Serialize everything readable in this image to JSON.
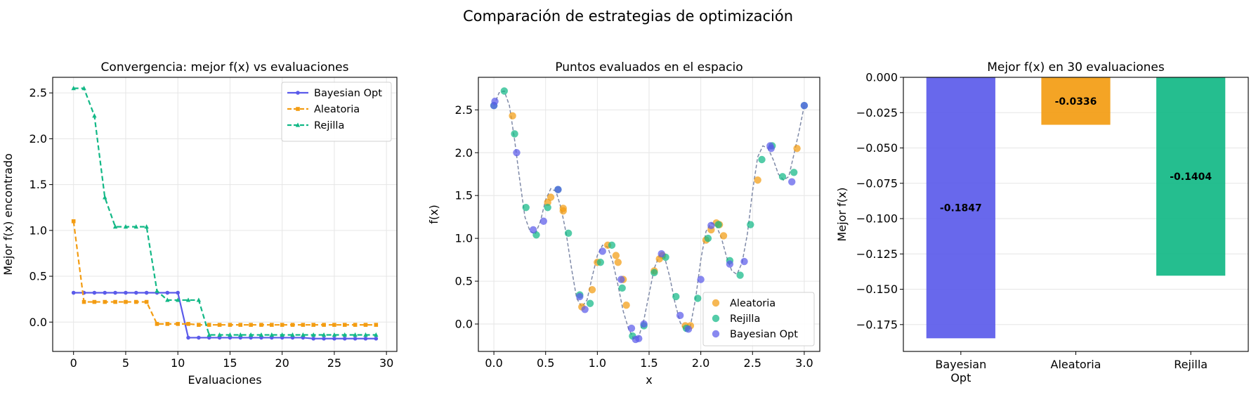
{
  "figure": {
    "suptitle": "Comparación de estrategias de optimización"
  },
  "colors": {
    "bayesian": "#5b5bea",
    "aleatoria": "#f39c12",
    "rejilla": "#12b886",
    "truth": "#7f8aa8",
    "grid": "#e6e6e6"
  },
  "chart_data": [
    {
      "type": "line",
      "title": "Convergencia: mejor f(x) vs evaluaciones",
      "xlabel": "Evaluaciones",
      "ylabel": "Mejor f(x) encontrado",
      "xlim": [
        -2,
        31
      ],
      "ylim": [
        -0.32,
        2.67
      ],
      "xticks": [
        0,
        5,
        10,
        15,
        20,
        25,
        30
      ],
      "xtick_labels": [
        "0",
        "5",
        "10",
        "15",
        "20",
        "25",
        "30"
      ],
      "yticks": [
        0.0,
        0.5,
        1.0,
        1.5,
        2.0,
        2.5
      ],
      "ytick_labels": [
        "0.0",
        "0.5",
        "1.0",
        "1.5",
        "2.0",
        "2.5"
      ],
      "grid": true,
      "legend": "top-right",
      "x": [
        0,
        1,
        2,
        3,
        4,
        5,
        6,
        7,
        8,
        9,
        10,
        11,
        12,
        13,
        14,
        15,
        16,
        17,
        18,
        19,
        20,
        21,
        22,
        23,
        24,
        25,
        26,
        27,
        28,
        29
      ],
      "series": [
        {
          "name": "Bayesian Opt",
          "color": "#5b5bea",
          "marker": "circle",
          "dash": "solid",
          "values": [
            0.32,
            0.32,
            0.32,
            0.32,
            0.32,
            0.32,
            0.32,
            0.32,
            0.32,
            0.32,
            0.32,
            -0.17,
            -0.17,
            -0.17,
            -0.17,
            -0.17,
            -0.17,
            -0.17,
            -0.17,
            -0.17,
            -0.17,
            -0.17,
            -0.17,
            -0.18,
            -0.18,
            -0.18,
            -0.18,
            -0.18,
            -0.18,
            -0.18
          ]
        },
        {
          "name": "Aleatoria",
          "color": "#f39c12",
          "marker": "square",
          "dash": "dashed",
          "values": [
            1.1,
            0.22,
            0.22,
            0.22,
            0.22,
            0.22,
            0.22,
            0.22,
            -0.02,
            -0.02,
            -0.02,
            -0.02,
            -0.03,
            -0.03,
            -0.03,
            -0.03,
            -0.03,
            -0.03,
            -0.03,
            -0.03,
            -0.03,
            -0.03,
            -0.03,
            -0.03,
            -0.03,
            -0.03,
            -0.03,
            -0.03,
            -0.03,
            -0.03
          ]
        },
        {
          "name": "Rejilla",
          "color": "#12b886",
          "marker": "triangle",
          "dash": "dashed",
          "values": [
            2.55,
            2.55,
            2.25,
            1.36,
            1.04,
            1.04,
            1.04,
            1.04,
            0.34,
            0.24,
            0.24,
            0.24,
            0.24,
            -0.14,
            -0.14,
            -0.14,
            -0.14,
            -0.14,
            -0.14,
            -0.14,
            -0.14,
            -0.14,
            -0.14,
            -0.14,
            -0.14,
            -0.14,
            -0.14,
            -0.14,
            -0.14,
            -0.14
          ]
        }
      ]
    },
    {
      "type": "scatter",
      "title": "Puntos evaluados en el espacio",
      "xlabel": "x",
      "ylabel": "f(x)",
      "xlim": [
        -0.15,
        3.15
      ],
      "ylim": [
        -0.32,
        2.88
      ],
      "xticks": [
        0.0,
        0.5,
        1.0,
        1.5,
        2.0,
        2.5,
        3.0
      ],
      "xtick_labels": [
        "0.0",
        "0.5",
        "1.0",
        "1.5",
        "2.0",
        "2.5",
        "3.0"
      ],
      "yticks": [
        0.0,
        0.5,
        1.0,
        1.5,
        2.0,
        2.5
      ],
      "ytick_labels": [
        "0.0",
        "0.5",
        "1.0",
        "1.5",
        "2.0",
        "2.5"
      ],
      "grid": true,
      "legend": "bottom-right",
      "curve": {
        "x": [
          0.0,
          0.05,
          0.1,
          0.15,
          0.2,
          0.25,
          0.3,
          0.35,
          0.4,
          0.45,
          0.5,
          0.55,
          0.6,
          0.65,
          0.7,
          0.75,
          0.8,
          0.85,
          0.9,
          0.95,
          1.0,
          1.05,
          1.1,
          1.15,
          1.2,
          1.25,
          1.3,
          1.35,
          1.4,
          1.45,
          1.5,
          1.55,
          1.6,
          1.65,
          1.7,
          1.75,
          1.8,
          1.85,
          1.9,
          1.95,
          2.0,
          2.05,
          2.1,
          2.15,
          2.2,
          2.25,
          2.3,
          2.35,
          2.4,
          2.45,
          2.5,
          2.55,
          2.6,
          2.65,
          2.7,
          2.75,
          2.8,
          2.85,
          2.9,
          2.95,
          3.0
        ],
        "y": [
          2.55,
          2.7,
          2.72,
          2.55,
          2.15,
          1.68,
          1.25,
          1.08,
          1.05,
          1.2,
          1.45,
          1.58,
          1.55,
          1.35,
          1.05,
          0.65,
          0.3,
          0.2,
          0.28,
          0.55,
          0.8,
          0.92,
          0.9,
          0.72,
          0.45,
          0.15,
          -0.05,
          -0.17,
          -0.15,
          0.05,
          0.35,
          0.65,
          0.8,
          0.78,
          0.55,
          0.25,
          0.02,
          -0.08,
          -0.02,
          0.3,
          0.75,
          1.08,
          1.18,
          1.15,
          1.0,
          0.78,
          0.62,
          0.58,
          0.72,
          1.05,
          1.55,
          1.95,
          2.08,
          2.05,
          1.92,
          1.75,
          1.68,
          1.72,
          1.98,
          2.25,
          2.55
        ]
      },
      "series": [
        {
          "name": "Aleatoria",
          "color": "#f39c12",
          "x": [
            0.18,
            0.52,
            0.55,
            0.67,
            0.67,
            0.85,
            0.95,
            1.0,
            1.1,
            1.18,
            1.2,
            1.25,
            1.28,
            1.55,
            1.6,
            1.63,
            1.85,
            1.9,
            2.05,
            2.1,
            2.15,
            2.18,
            2.22,
            2.55,
            2.93
          ],
          "y": [
            2.43,
            1.42,
            1.48,
            1.35,
            1.32,
            0.2,
            0.4,
            0.72,
            0.92,
            0.8,
            0.72,
            0.52,
            0.22,
            0.62,
            0.76,
            0.8,
            -0.02,
            -0.02,
            0.98,
            1.1,
            1.18,
            1.16,
            1.03,
            1.68,
            2.05
          ]
        },
        {
          "name": "Rejilla",
          "color": "#12b886",
          "x": [
            0.0,
            0.1,
            0.2,
            0.31,
            0.41,
            0.52,
            0.62,
            0.72,
            0.83,
            0.93,
            1.03,
            1.14,
            1.24,
            1.34,
            1.45,
            1.55,
            1.66,
            1.76,
            1.86,
            1.97,
            2.07,
            2.17,
            2.28,
            2.38,
            2.48,
            2.59,
            2.69,
            2.79,
            2.9,
            3.0
          ],
          "y": [
            2.55,
            2.72,
            2.22,
            1.36,
            1.04,
            1.36,
            1.57,
            1.06,
            0.34,
            0.24,
            0.72,
            0.92,
            0.42,
            -0.14,
            -0.02,
            0.6,
            0.78,
            0.32,
            -0.05,
            0.3,
            1.0,
            1.16,
            0.74,
            0.57,
            1.16,
            1.92,
            2.08,
            1.72,
            1.77,
            2.55
          ]
        },
        {
          "name": "Bayesian Opt",
          "color": "#5b5bea",
          "x": [
            0.0,
            0.01,
            0.22,
            0.38,
            0.48,
            0.62,
            0.83,
            0.88,
            1.05,
            1.23,
            1.33,
            1.37,
            1.4,
            1.45,
            1.62,
            1.8,
            1.88,
            2.0,
            2.1,
            2.28,
            2.42,
            2.67,
            2.68,
            2.88,
            3.0
          ],
          "y": [
            2.55,
            2.6,
            2.0,
            1.1,
            1.2,
            1.57,
            0.32,
            0.17,
            0.85,
            0.52,
            -0.05,
            -0.18,
            -0.17,
            0.0,
            0.82,
            0.1,
            -0.06,
            0.52,
            1.15,
            0.7,
            0.73,
            2.08,
            2.05,
            1.66,
            2.55
          ]
        }
      ]
    },
    {
      "type": "bar",
      "title": "Mejor f(x) en 30 evaluaciones",
      "xlabel": "",
      "ylabel": "Mejor f(x)",
      "ylim": [
        -0.194,
        0.0
      ],
      "yticks": [
        0.0,
        -0.025,
        -0.05,
        -0.075,
        -0.1,
        -0.125,
        -0.15,
        -0.175
      ],
      "ytick_labels": [
        "0.000",
        "−0.025",
        "−0.050",
        "−0.075",
        "−0.100",
        "−0.125",
        "−0.150",
        "−0.175"
      ],
      "grid": true,
      "categories": [
        [
          "Bayesian",
          "Opt"
        ],
        [
          "Aleatoria"
        ],
        [
          "Rejilla"
        ]
      ],
      "values": [
        -0.1847,
        -0.0336,
        -0.1404
      ],
      "labels": [
        "-0.1847",
        "-0.0336",
        "-0.1404"
      ],
      "colors": [
        "#5b5bea",
        "#f39c12",
        "#12b886"
      ]
    }
  ]
}
